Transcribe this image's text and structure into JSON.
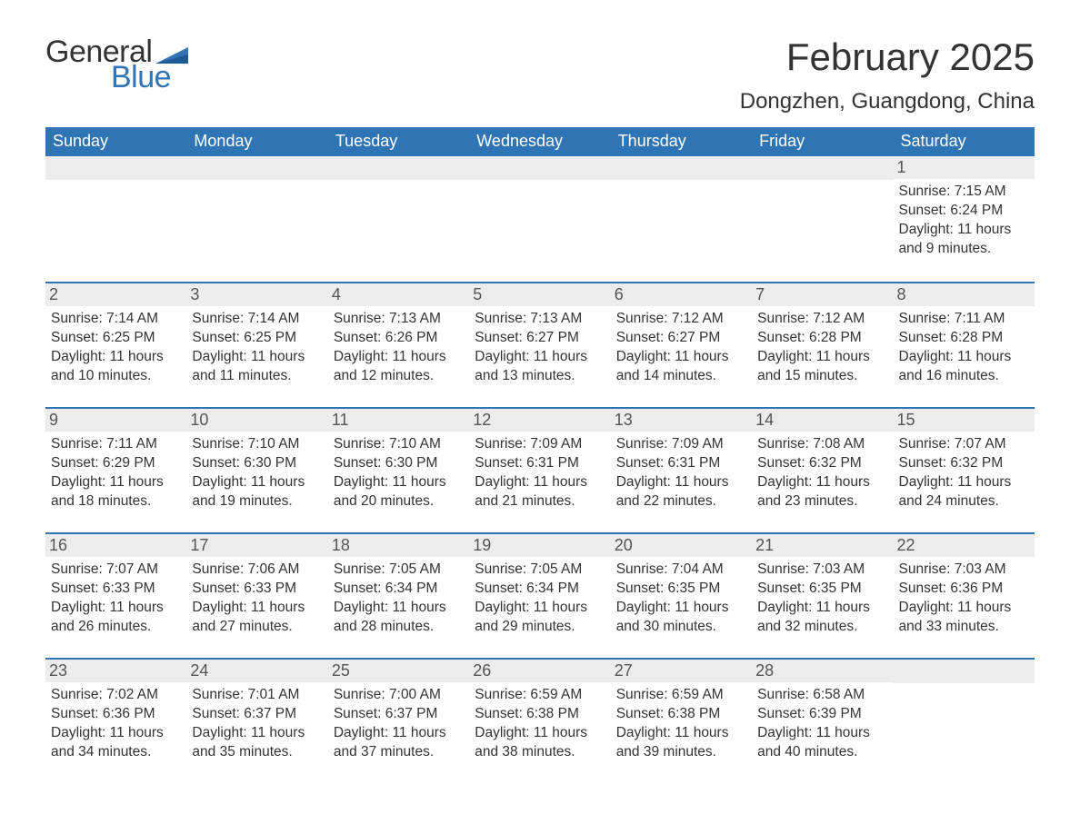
{
  "logo": {
    "word1": "General",
    "word2": "Blue",
    "flag_color": "#2f75b5"
  },
  "header": {
    "month_title": "February 2025",
    "location": "Dongzhen, Guangdong, China"
  },
  "colors": {
    "header_bg": "#2f75b5",
    "header_text": "#ffffff",
    "daynum_bg": "#ececec",
    "daynum_text": "#555555",
    "body_text": "#333333",
    "page_bg": "#ffffff",
    "week_border": "#2f75b5"
  },
  "typography": {
    "title_fontsize": 42,
    "location_fontsize": 24,
    "weekday_fontsize": 18,
    "daynum_fontsize": 18,
    "body_fontsize": 15.5,
    "font_family": "Segoe UI"
  },
  "weekdays": [
    "Sunday",
    "Monday",
    "Tuesday",
    "Wednesday",
    "Thursday",
    "Friday",
    "Saturday"
  ],
  "weeks": [
    [
      null,
      null,
      null,
      null,
      null,
      null,
      {
        "num": "1",
        "sunrise": "Sunrise: 7:15 AM",
        "sunset": "Sunset: 6:24 PM",
        "daylight1": "Daylight: 11 hours",
        "daylight2": "and 9 minutes."
      }
    ],
    [
      {
        "num": "2",
        "sunrise": "Sunrise: 7:14 AM",
        "sunset": "Sunset: 6:25 PM",
        "daylight1": "Daylight: 11 hours",
        "daylight2": "and 10 minutes."
      },
      {
        "num": "3",
        "sunrise": "Sunrise: 7:14 AM",
        "sunset": "Sunset: 6:25 PM",
        "daylight1": "Daylight: 11 hours",
        "daylight2": "and 11 minutes."
      },
      {
        "num": "4",
        "sunrise": "Sunrise: 7:13 AM",
        "sunset": "Sunset: 6:26 PM",
        "daylight1": "Daylight: 11 hours",
        "daylight2": "and 12 minutes."
      },
      {
        "num": "5",
        "sunrise": "Sunrise: 7:13 AM",
        "sunset": "Sunset: 6:27 PM",
        "daylight1": "Daylight: 11 hours",
        "daylight2": "and 13 minutes."
      },
      {
        "num": "6",
        "sunrise": "Sunrise: 7:12 AM",
        "sunset": "Sunset: 6:27 PM",
        "daylight1": "Daylight: 11 hours",
        "daylight2": "and 14 minutes."
      },
      {
        "num": "7",
        "sunrise": "Sunrise: 7:12 AM",
        "sunset": "Sunset: 6:28 PM",
        "daylight1": "Daylight: 11 hours",
        "daylight2": "and 15 minutes."
      },
      {
        "num": "8",
        "sunrise": "Sunrise: 7:11 AM",
        "sunset": "Sunset: 6:28 PM",
        "daylight1": "Daylight: 11 hours",
        "daylight2": "and 16 minutes."
      }
    ],
    [
      {
        "num": "9",
        "sunrise": "Sunrise: 7:11 AM",
        "sunset": "Sunset: 6:29 PM",
        "daylight1": "Daylight: 11 hours",
        "daylight2": "and 18 minutes."
      },
      {
        "num": "10",
        "sunrise": "Sunrise: 7:10 AM",
        "sunset": "Sunset: 6:30 PM",
        "daylight1": "Daylight: 11 hours",
        "daylight2": "and 19 minutes."
      },
      {
        "num": "11",
        "sunrise": "Sunrise: 7:10 AM",
        "sunset": "Sunset: 6:30 PM",
        "daylight1": "Daylight: 11 hours",
        "daylight2": "and 20 minutes."
      },
      {
        "num": "12",
        "sunrise": "Sunrise: 7:09 AM",
        "sunset": "Sunset: 6:31 PM",
        "daylight1": "Daylight: 11 hours",
        "daylight2": "and 21 minutes."
      },
      {
        "num": "13",
        "sunrise": "Sunrise: 7:09 AM",
        "sunset": "Sunset: 6:31 PM",
        "daylight1": "Daylight: 11 hours",
        "daylight2": "and 22 minutes."
      },
      {
        "num": "14",
        "sunrise": "Sunrise: 7:08 AM",
        "sunset": "Sunset: 6:32 PM",
        "daylight1": "Daylight: 11 hours",
        "daylight2": "and 23 minutes."
      },
      {
        "num": "15",
        "sunrise": "Sunrise: 7:07 AM",
        "sunset": "Sunset: 6:32 PM",
        "daylight1": "Daylight: 11 hours",
        "daylight2": "and 24 minutes."
      }
    ],
    [
      {
        "num": "16",
        "sunrise": "Sunrise: 7:07 AM",
        "sunset": "Sunset: 6:33 PM",
        "daylight1": "Daylight: 11 hours",
        "daylight2": "and 26 minutes."
      },
      {
        "num": "17",
        "sunrise": "Sunrise: 7:06 AM",
        "sunset": "Sunset: 6:33 PM",
        "daylight1": "Daylight: 11 hours",
        "daylight2": "and 27 minutes."
      },
      {
        "num": "18",
        "sunrise": "Sunrise: 7:05 AM",
        "sunset": "Sunset: 6:34 PM",
        "daylight1": "Daylight: 11 hours",
        "daylight2": "and 28 minutes."
      },
      {
        "num": "19",
        "sunrise": "Sunrise: 7:05 AM",
        "sunset": "Sunset: 6:34 PM",
        "daylight1": "Daylight: 11 hours",
        "daylight2": "and 29 minutes."
      },
      {
        "num": "20",
        "sunrise": "Sunrise: 7:04 AM",
        "sunset": "Sunset: 6:35 PM",
        "daylight1": "Daylight: 11 hours",
        "daylight2": "and 30 minutes."
      },
      {
        "num": "21",
        "sunrise": "Sunrise: 7:03 AM",
        "sunset": "Sunset: 6:35 PM",
        "daylight1": "Daylight: 11 hours",
        "daylight2": "and 32 minutes."
      },
      {
        "num": "22",
        "sunrise": "Sunrise: 7:03 AM",
        "sunset": "Sunset: 6:36 PM",
        "daylight1": "Daylight: 11 hours",
        "daylight2": "and 33 minutes."
      }
    ],
    [
      {
        "num": "23",
        "sunrise": "Sunrise: 7:02 AM",
        "sunset": "Sunset: 6:36 PM",
        "daylight1": "Daylight: 11 hours",
        "daylight2": "and 34 minutes."
      },
      {
        "num": "24",
        "sunrise": "Sunrise: 7:01 AM",
        "sunset": "Sunset: 6:37 PM",
        "daylight1": "Daylight: 11 hours",
        "daylight2": "and 35 minutes."
      },
      {
        "num": "25",
        "sunrise": "Sunrise: 7:00 AM",
        "sunset": "Sunset: 6:37 PM",
        "daylight1": "Daylight: 11 hours",
        "daylight2": "and 37 minutes."
      },
      {
        "num": "26",
        "sunrise": "Sunrise: 6:59 AM",
        "sunset": "Sunset: 6:38 PM",
        "daylight1": "Daylight: 11 hours",
        "daylight2": "and 38 minutes."
      },
      {
        "num": "27",
        "sunrise": "Sunrise: 6:59 AM",
        "sunset": "Sunset: 6:38 PM",
        "daylight1": "Daylight: 11 hours",
        "daylight2": "and 39 minutes."
      },
      {
        "num": "28",
        "sunrise": "Sunrise: 6:58 AM",
        "sunset": "Sunset: 6:39 PM",
        "daylight1": "Daylight: 11 hours",
        "daylight2": "and 40 minutes."
      },
      null
    ]
  ]
}
